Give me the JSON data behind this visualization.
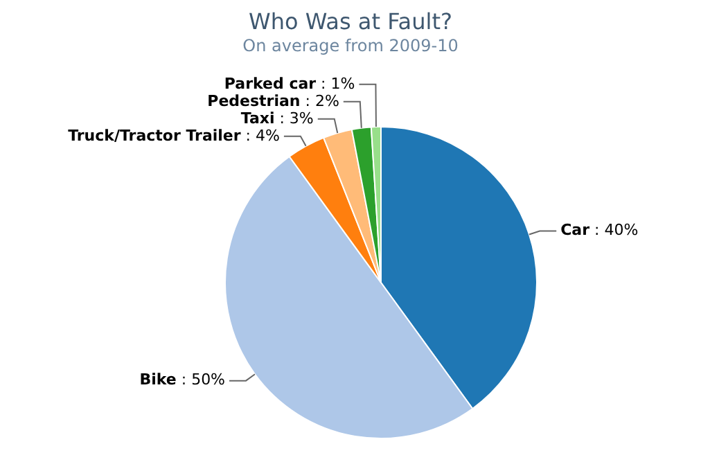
{
  "chart_data": {
    "type": "pie",
    "title": "Who Was at Fault?",
    "subtitle": "On average from 2009-10",
    "categories": [
      "Car",
      "Bike",
      "Truck/Tractor Trailer",
      "Taxi",
      "Pedestrian",
      "Parked car"
    ],
    "values": [
      40,
      50,
      4,
      3,
      2,
      1
    ],
    "value_labels": [
      ": 40%",
      ": 50%",
      ": 4%",
      ": 3%",
      ": 2%",
      ": 1%"
    ],
    "colors": [
      "#1f77b4",
      "#aec7e8",
      "#ff7f0e",
      "#ffbb78",
      "#2ca02c",
      "#98df8a"
    ],
    "legend": false
  }
}
